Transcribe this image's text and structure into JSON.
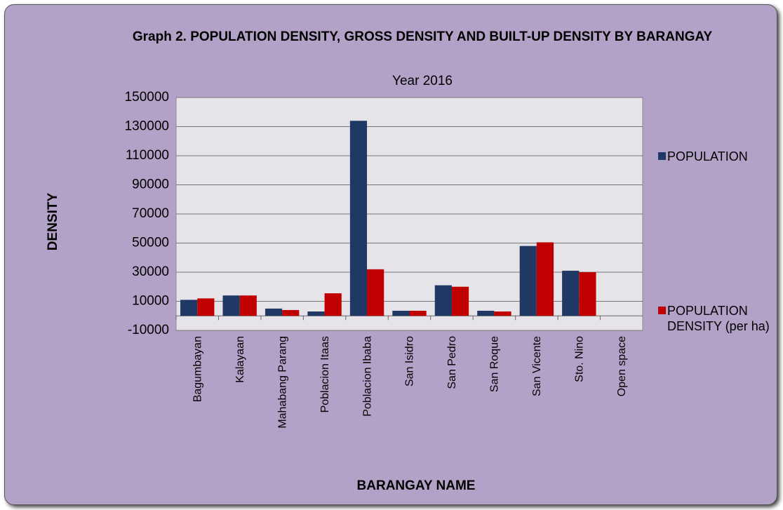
{
  "chart_data": {
    "type": "bar",
    "title": "Graph 2. POPULATION  DENSITY, GROSS DENSITY AND BUILT-UP DENSITY BY BARANGAY",
    "subtitle": "Year 2016",
    "x_label": "BARANGAY NAME",
    "y_label": "DENSITY",
    "categories": [
      "Bagumbayan",
      "Kalayaan",
      "Mahabang Parang",
      "Poblacion Itaas",
      "Poblacion Ibaba",
      "San Isidro",
      "San Pedro",
      "San Roque",
      "San Vicente",
      "Sto. Nino",
      "Open space"
    ],
    "series": [
      {
        "name": "POPULATION",
        "color": "#1f3864",
        "values": [
          11000,
          14000,
          5000,
          3000,
          134000,
          3500,
          21000,
          3500,
          48000,
          31000,
          0
        ]
      },
      {
        "name": "POPULATION DENSITY (per ha)",
        "color": "#c00000",
        "values": [
          12000,
          14000,
          4000,
          15500,
          32000,
          3500,
          20000,
          3000,
          50500,
          30000,
          0
        ]
      }
    ],
    "ylim": [
      -10000,
      150000
    ],
    "yticks": [
      -10000,
      10000,
      30000,
      50000,
      70000,
      90000,
      110000,
      130000,
      150000
    ],
    "grid": true,
    "legend": "right"
  }
}
